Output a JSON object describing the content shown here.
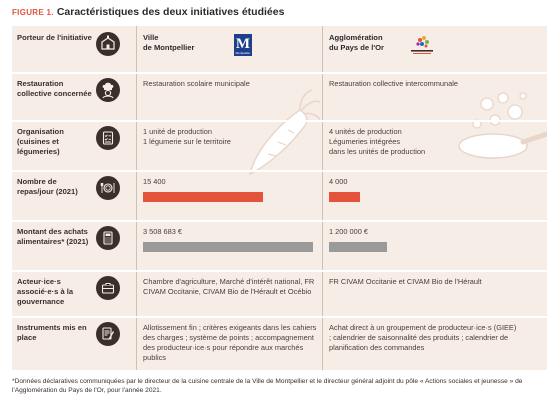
{
  "figure": {
    "label": "FIGURE 1.",
    "title": "Caractéristiques des deux initiatives étudiées"
  },
  "header": {
    "label": "Porteur de l'initiative",
    "col1_line1": "Ville",
    "col1_line2": "de Montpellier",
    "col2_line1": "Agglomération",
    "col2_line2": "du Pays de l'Or",
    "logo_montpellier_text": "M",
    "logo_montpellier_sub": "Montpellier"
  },
  "rows": {
    "restauration": {
      "label": "Restauration collective concernée",
      "col1": "Restauration scolaire municipale",
      "col2": "Restauration collective intercommunale"
    },
    "organisation": {
      "label": "Organisation (cuisines et légumeries)",
      "col1_line1": "1 unité de production",
      "col1_line2": "1 légumerie sur le territoire",
      "col2_line1": "4 unités de production",
      "col2_line2": "Légumeries intégrées",
      "col2_line3": "dans les unités de production"
    },
    "repas": {
      "label": "Nombre de repas/jour (2021)",
      "col1": "15 400",
      "col2": "4 000",
      "col1_value": 15400,
      "col2_value": 4000
    },
    "montant": {
      "label": "Montant des achats alimentaires* (2021)",
      "col1": "3 508 683 €",
      "col2": "1 200 000 €",
      "col1_value": 3508683,
      "col2_value": 1200000
    },
    "acteurs": {
      "label": "Acteur·ice·s associé·e·s à la gouvernance",
      "col1": "Chambre d'agriculture, Marché d'intérêt national, FR CIVAM Occitanie, CIVAM Bio de l'Hérault et Océbio",
      "col2": "FR CIVAM Occitanie et CIVAM Bio de l'Hérault"
    },
    "instruments": {
      "label": "Instruments mis en place",
      "col1": "Allotissement fin ; critères exigeants dans les cahiers des charges ; système de points ; accompagnement des producteur·ice·s pour répondre aux marchés publics",
      "col2": "Achat direct à un groupement de producteur·ice·s (GIEE) ; calendrier de saisonnalité des produits ; calendrier de planification des commandes"
    }
  },
  "footnote": "*Données déclaratives communiquées par le directeur de la cuisine centrale de la Ville de Montpellier et le directeur général adjoint du pôle « Actions sociales et jeunesse » de l'Agglomération du Pays de l'Or, pour l'année 2021.",
  "colors": {
    "accent": "#e5533d",
    "bar_gray": "#9a9a9a",
    "table_bg": "#f7ede7",
    "icon": "#3b2f2a"
  }
}
